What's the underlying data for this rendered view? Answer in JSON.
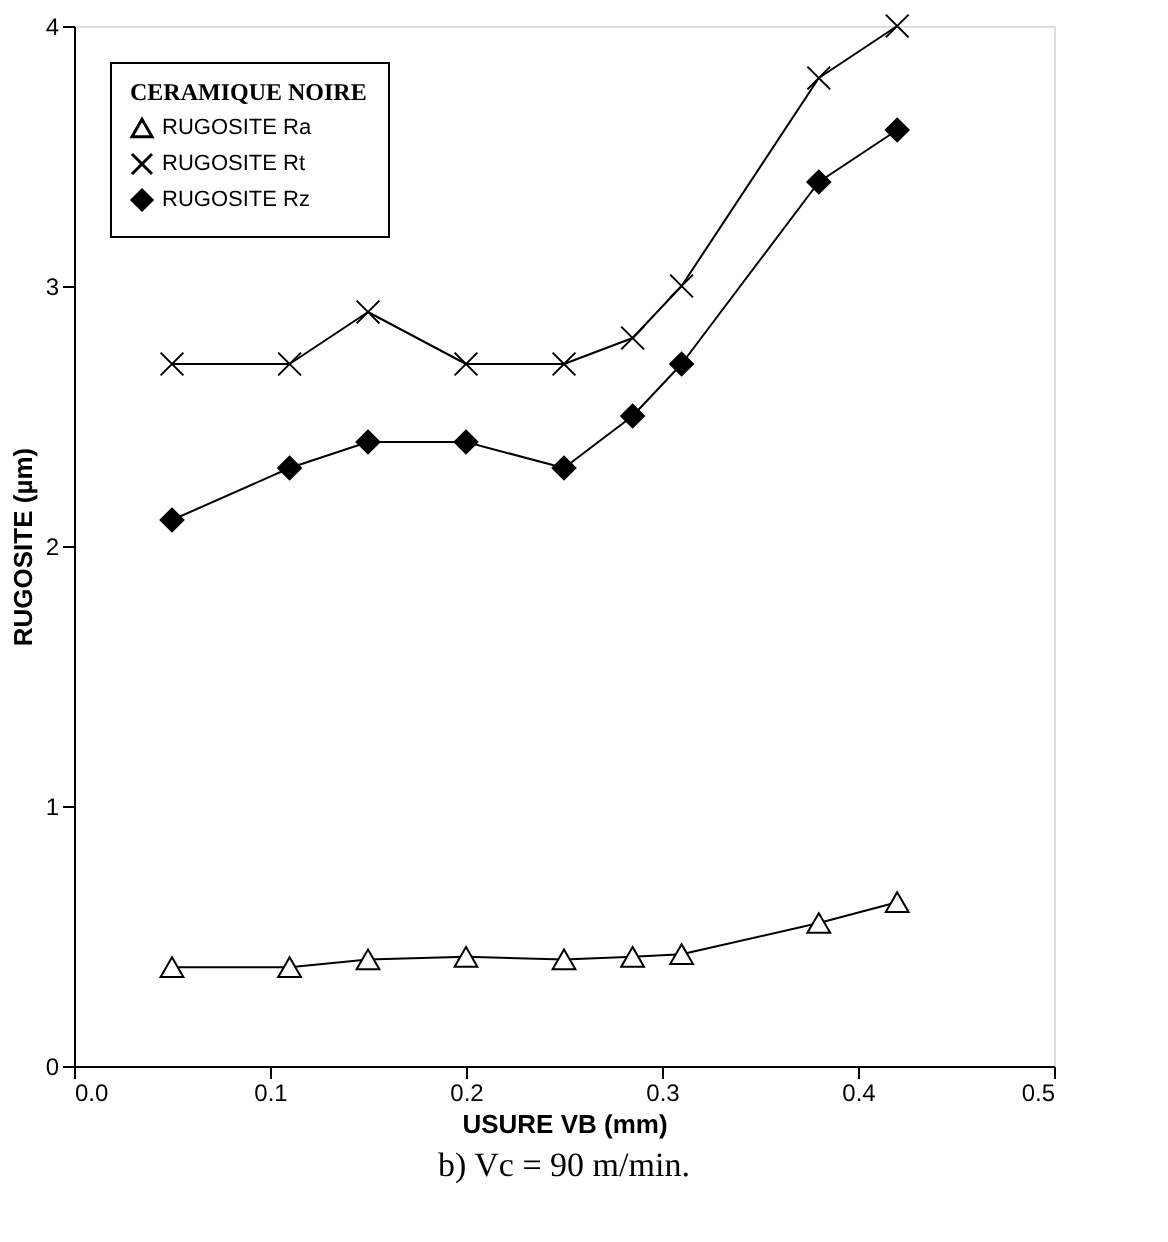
{
  "chart_data": {
    "type": "line",
    "xlabel": "USURE VB (mm)",
    "ylabel": "RUGOSITE (µm)",
    "legend_title": "CERAMIQUE NOIRE",
    "annotations": [
      "b)  Vc = 90 m/min."
    ],
    "x": [
      0.05,
      0.11,
      0.15,
      0.2,
      0.25,
      0.285,
      0.31,
      0.38,
      0.42
    ],
    "series": [
      {
        "name": "RUGOSITE Ra",
        "color": "#000000",
        "marker": "triangle",
        "values": [
          0.38,
          0.38,
          0.41,
          0.42,
          0.41,
          0.42,
          0.43,
          0.55,
          0.63
        ]
      },
      {
        "name": "RUGOSITE Rt",
        "color": "#000000",
        "marker": "cross",
        "values": [
          2.7,
          2.7,
          2.9,
          2.7,
          2.7,
          2.8,
          3.0,
          3.8,
          4.0
        ]
      },
      {
        "name": "RUGOSITE Rz",
        "color": "#000000",
        "marker": "diamond",
        "values": [
          2.1,
          2.3,
          2.4,
          2.4,
          2.3,
          2.5,
          2.7,
          3.4,
          3.6
        ]
      }
    ],
    "xlim": [
      0,
      0.5
    ],
    "ylim": [
      0,
      4
    ],
    "xticks": [
      {
        "value": 0,
        "label": "0.0"
      },
      {
        "value": 0.1,
        "label": "0.1"
      },
      {
        "value": 0.2,
        "label": "0.2"
      },
      {
        "value": 0.3,
        "label": "0.3"
      },
      {
        "value": 0.4,
        "label": "0.4"
      },
      {
        "value": 0.5,
        "label": "0.5"
      }
    ],
    "yticks": [
      0,
      1,
      2,
      3,
      4
    ],
    "grid": false,
    "legend": "top left",
    "line_style": "solid"
  }
}
